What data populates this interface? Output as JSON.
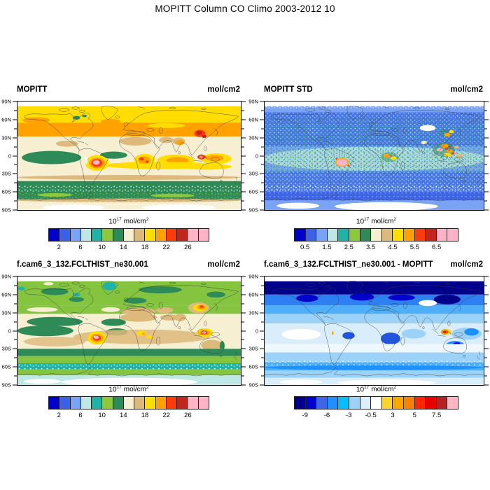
{
  "chart_data": {
    "type": "heatmap",
    "subtype": "filled-contour world maps, equirectangular projection, 2x2 panel grid",
    "figure_title": "MOPITT Column CO Climo 2003-2012 10",
    "lat_tick_labels": [
      "90N",
      "60N",
      "30N",
      "0",
      "30S",
      "60S",
      "90S"
    ],
    "lat_minor_ticks_every_deg": 15,
    "colorbar_title": {
      "base": "10",
      "exponent": "17",
      "unit": "mol/cm",
      "unit_exponent": "2"
    },
    "panels": [
      {
        "title": "MOPITT",
        "units_label": "mol/cm2",
        "colorbar": {
          "tick_labels": [
            "2",
            "6",
            "10",
            "14",
            "18",
            "22",
            "26"
          ],
          "colors": [
            "#0000CC",
            "#3B62E6",
            "#7AA3F5",
            "#BEE8E4",
            "#1FB2A7",
            "#8DC63F",
            "#2E8B57",
            "#F6EFD2",
            "#DEB97C",
            "#FFDD00",
            "#FFA200",
            "#FF3B0A",
            "#C2251C",
            "#FFB3C6",
            "#FFB3C6"
          ]
        }
      },
      {
        "title": "MOPITT STD",
        "units_label": "mol/cm2",
        "colorbar": {
          "tick_labels": [
            "0.5",
            "1.5",
            "2.5",
            "3.5",
            "4.5",
            "5.5",
            "6.5"
          ],
          "colors": [
            "#0000CC",
            "#3B62E6",
            "#7AA3F5",
            "#BEE8E4",
            "#1FB2A7",
            "#8DC63F",
            "#2E8B57",
            "#F6EFD2",
            "#DEB97C",
            "#FFDD00",
            "#FFA200",
            "#FF3B0A",
            "#C2251C",
            "#FFB3C6",
            "#FFB3C6"
          ]
        }
      },
      {
        "title": "f.cam6_3_132.FCLTHIST_ne30.001",
        "units_label": "mol/cm2",
        "colorbar": {
          "tick_labels": [
            "2",
            "6",
            "10",
            "14",
            "18",
            "22",
            "26"
          ],
          "colors": [
            "#0000CC",
            "#3B62E6",
            "#7AA3F5",
            "#BEE8E4",
            "#1FB2A7",
            "#8DC63F",
            "#2E8B57",
            "#F6EFD2",
            "#DEB97C",
            "#FFDD00",
            "#FFA200",
            "#FF3B0A",
            "#C2251C",
            "#FFB3C6",
            "#FFB3C6"
          ]
        }
      },
      {
        "title": "f.cam6_3_132.FCLTHIST_ne30.001 - MOPITT",
        "units_label": "mol/cm2",
        "colorbar": {
          "tick_labels": [
            "-9",
            "-6",
            "-3",
            "-0.5",
            "3",
            "5",
            "7.5"
          ],
          "colors": [
            "#00008B",
            "#0000CD",
            "#3F64E4",
            "#1E90FF",
            "#00BFFF",
            "#9CD2F7",
            "#DCEFFA",
            "#FFFFFF",
            "#FFD42E",
            "#FFA500",
            "#FF7F00",
            "#FF2400",
            "#E60000",
            "#B22222",
            "#FFB5C5"
          ]
        }
      }
    ]
  }
}
